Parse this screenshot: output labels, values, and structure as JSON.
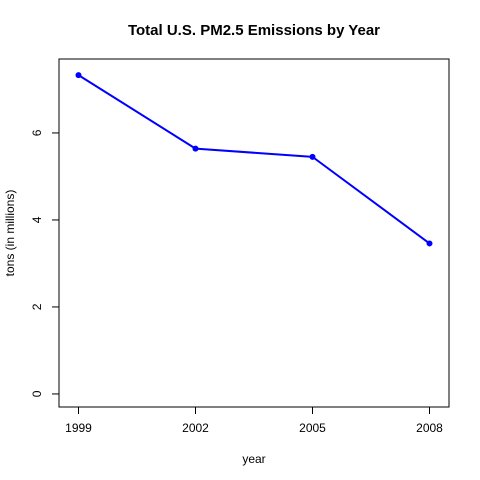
{
  "chart_data": {
    "type": "line",
    "title": "Total U.S. PM2.5 Emissions by Year",
    "xlabel": "year",
    "ylabel": "tons (in millions)",
    "x": [
      1999,
      2002,
      2005,
      2008
    ],
    "x_ticks": [
      "1999",
      "2002",
      "2005",
      "2008"
    ],
    "y_ticks": [
      "0",
      "2",
      "4",
      "6"
    ],
    "xlim": [
      1998.5,
      2008.5
    ],
    "ylim": [
      -0.3,
      7.7
    ],
    "grid": false,
    "series": [
      {
        "values": [
          7.33,
          5.64,
          5.45,
          3.46
        ],
        "color": "#0000ff",
        "marker": "filled-circle"
      }
    ]
  }
}
